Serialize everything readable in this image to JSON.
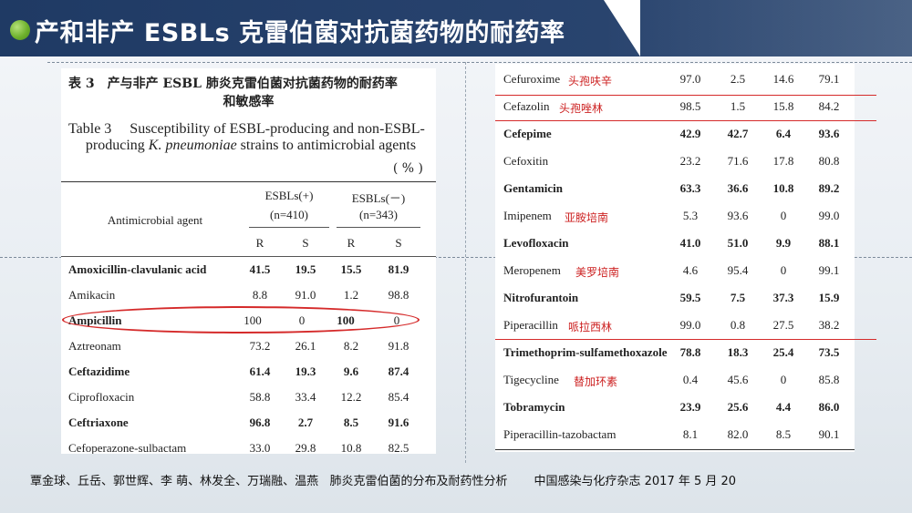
{
  "slide": {
    "title": "产和非产 ESBLs 克雷伯菌对抗菌药物的耐药率",
    "footer": {
      "authors": "覃金球、丘岳、郭世辉、李 萌、林发全、万瑞融、温燕",
      "article": "肺炎克雷伯菌的分布及耐药性分析",
      "journal": "中国感染与化疗杂志 2017 年 5 月 20"
    },
    "colors": {
      "title_bar": "#1f3a64",
      "annotation_red": "#d52a2a",
      "accent_green": "#6fb22e"
    }
  },
  "table_left": {
    "caption_cn_line1": "表 3　产与非产 ESBL 肺炎克雷伯菌对抗菌药物的耐药率",
    "caption_cn_line2": "和敏感率",
    "caption_en_line1": "Table 3　 Susceptibility of ESBL-producing and non-ESBL-",
    "caption_en_line2_pre": "producing ",
    "caption_en_line2_italic": "K. pneumoniae",
    "caption_en_line2_post": " strains to antimicrobial agents",
    "unit": "( % )",
    "header": {
      "agent": "Antimicrobial agent",
      "group1": "ESBLs(+)",
      "group1_n": "(n=410)",
      "group2": "ESBLs(－)",
      "group2_n": "(n=343)",
      "r": "R",
      "s": "S"
    },
    "rows": [
      {
        "drug": "Amoxicillin-clavulanic acid",
        "r1": "41.5",
        "s1": "19.5",
        "r2": "15.5",
        "s2": "81.9",
        "bold": true
      },
      {
        "drug": "Amikacin",
        "r1": "8.8",
        "s1": "91.0",
        "r2": "1.2",
        "s2": "98.8",
        "bold": false
      },
      {
        "drug": "Ampicillin",
        "r1": "100",
        "s1": "0",
        "r2": "100",
        "s2": "0",
        "bold": true
      },
      {
        "drug": "Aztreonam",
        "r1": "73.2",
        "s1": "26.1",
        "r2": "8.2",
        "s2": "91.8",
        "bold": false
      },
      {
        "drug": "Ceftazidime",
        "r1": "61.4",
        "s1": "19.3",
        "r2": "9.6",
        "s2": "87.4",
        "bold": true
      },
      {
        "drug": "Ciprofloxacin",
        "r1": "58.8",
        "s1": "33.4",
        "r2": "12.2",
        "s2": "85.4",
        "bold": false
      },
      {
        "drug": "Ceftriaxone",
        "r1": "96.8",
        "s1": "2.7",
        "r2": "8.5",
        "s2": "91.6",
        "bold": true
      },
      {
        "drug": "Cefoperazone-sulbactam",
        "r1": "33.0",
        "s1": "29.8",
        "r2": "10.8",
        "s2": "82.5",
        "bold": false
      }
    ]
  },
  "table_right": {
    "rows": [
      {
        "drug": "Cefuroxime",
        "cn": "头孢呋辛",
        "r1": "97.0",
        "s1": "2.5",
        "r2": "14.6",
        "s2": "79.1",
        "bold": false
      },
      {
        "drug": "Cefazolin",
        "cn": "头孢唑林",
        "r1": "98.5",
        "s1": "1.5",
        "r2": "15.8",
        "s2": "84.2",
        "bold": false
      },
      {
        "drug": "Cefepime",
        "cn": "",
        "r1": "42.9",
        "s1": "42.7",
        "r2": "6.4",
        "s2": "93.6",
        "bold": true
      },
      {
        "drug": "Cefoxitin",
        "cn": "",
        "r1": "23.2",
        "s1": "71.6",
        "r2": "17.8",
        "s2": "80.8",
        "bold": false
      },
      {
        "drug": "Gentamicin",
        "cn": "",
        "r1": "63.3",
        "s1": "36.6",
        "r2": "10.8",
        "s2": "89.2",
        "bold": true
      },
      {
        "drug": "Imipenem",
        "cn": "亚胺培南",
        "r1": "5.3",
        "s1": "93.6",
        "r2": "0",
        "s2": "99.0",
        "bold": false
      },
      {
        "drug": "Levofloxacin",
        "cn": "",
        "r1": "41.0",
        "s1": "51.0",
        "r2": "9.9",
        "s2": "88.1",
        "bold": true
      },
      {
        "drug": "Meropenem",
        "cn": "美罗培南",
        "r1": "4.6",
        "s1": "95.4",
        "r2": "0",
        "s2": "99.1",
        "bold": false
      },
      {
        "drug": "Nitrofurantoin",
        "cn": "",
        "r1": "59.5",
        "s1": "7.5",
        "r2": "37.3",
        "s2": "15.9",
        "bold": true
      },
      {
        "drug": "Piperacillin",
        "cn": "哌拉西林",
        "r1": "99.0",
        "s1": "0.8",
        "r2": "27.5",
        "s2": "38.2",
        "bold": false
      },
      {
        "drug": "Trimethoprim-sulfamethoxazole",
        "cn": "",
        "r1": "78.8",
        "s1": "18.3",
        "r2": "25.4",
        "s2": "73.5",
        "bold": true
      },
      {
        "drug": "Tigecycline",
        "cn": "替加环素",
        "r1": "0.4",
        "s1": "45.6",
        "r2": "0",
        "s2": "85.8",
        "bold": false
      },
      {
        "drug": "Tobramycin",
        "cn": "",
        "r1": "23.9",
        "s1": "25.6",
        "r2": "4.4",
        "s2": "86.0",
        "bold": true
      },
      {
        "drug": "Piperacillin-tazobactam",
        "cn": "",
        "r1": "8.1",
        "s1": "82.0",
        "r2": "8.5",
        "s2": "90.1",
        "bold": false
      }
    ]
  }
}
